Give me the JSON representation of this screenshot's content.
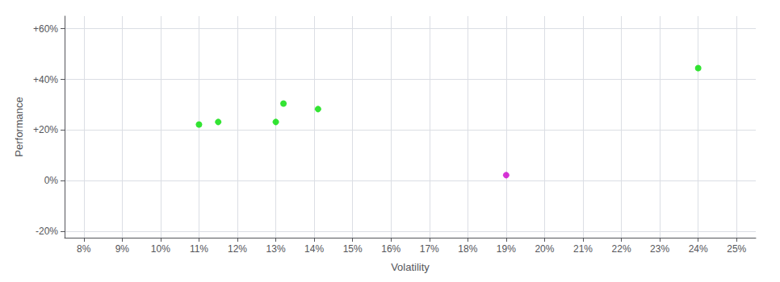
{
  "chart_data": {
    "type": "scatter",
    "xlabel": "Volatility",
    "ylabel": "Performance",
    "series": [
      {
        "color": "#00dd00",
        "x": [
          0.11,
          0.115,
          0.13,
          0.132,
          0.141,
          0.24
        ],
        "values": [
          0.222,
          0.232,
          0.232,
          0.305,
          0.283,
          0.445
        ]
      },
      {
        "color": "#cc00cc",
        "x": [
          0.19
        ],
        "values": [
          0.022
        ]
      }
    ],
    "xlim": [
      0.075,
      0.255
    ],
    "xticks": [
      {
        "value": 0.08,
        "label": "8%"
      },
      {
        "value": 0.09,
        "label": "9%"
      },
      {
        "value": 0.1,
        "label": "10%"
      },
      {
        "value": 0.11,
        "label": "11%"
      },
      {
        "value": 0.12,
        "label": "12%"
      },
      {
        "value": 0.13,
        "label": "13%"
      },
      {
        "value": 0.14,
        "label": "14%"
      },
      {
        "value": 0.15,
        "label": "15%"
      },
      {
        "value": 0.16,
        "label": "16%"
      },
      {
        "value": 0.17,
        "label": "17%"
      },
      {
        "value": 0.18,
        "label": "18%"
      },
      {
        "value": 0.19,
        "label": "19%"
      },
      {
        "value": 0.2,
        "label": "20%"
      },
      {
        "value": 0.21,
        "label": "21%"
      },
      {
        "value": 0.22,
        "label": "22%"
      },
      {
        "value": 0.23,
        "label": "23%"
      },
      {
        "value": 0.24,
        "label": "24%"
      },
      {
        "value": 0.25,
        "label": "25%"
      }
    ],
    "ylim": [
      -0.225,
      0.65
    ],
    "yticks": [
      {
        "value": -0.2,
        "label": "-20%"
      },
      {
        "value": 0.0,
        "label": "0%"
      },
      {
        "value": 0.2,
        "label": "+20%"
      },
      {
        "value": 0.4,
        "label": "+40%"
      },
      {
        "value": 0.6,
        "label": "+60%"
      }
    ],
    "grid": true
  }
}
